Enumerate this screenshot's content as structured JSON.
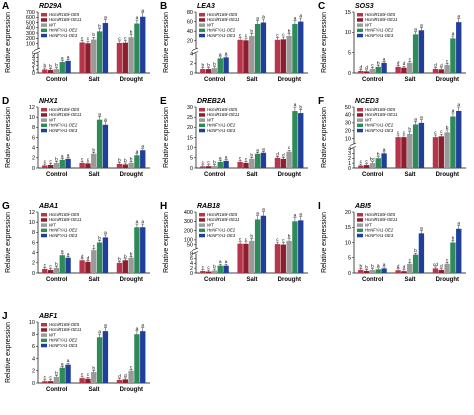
{
  "colors": {
    "HcmiR169i-OE5": "#b5364a",
    "HcmiR169i-OE11": "#8c1f2e",
    "WT": "#9a9a9a",
    "HcNFYA1-OE2": "#2e8b57",
    "HcNFYA1-OE3": "#1f3f9a"
  },
  "chart_data": [
    {
      "type": "bar",
      "letter": "A",
      "title": "RD29A",
      "ylabel": "Relative expression",
      "categories": [
        "Control",
        "Salt",
        "Drought"
      ],
      "broken_axis": true,
      "ylim": [
        0,
        700
      ],
      "yticks": [
        0,
        1,
        2,
        3,
        4,
        5,
        100,
        200,
        300,
        400,
        500,
        600,
        700
      ],
      "series": [
        {
          "name": "HcmiR169i-OE5",
          "values": [
            0.9,
            120,
            110
          ],
          "letters": [
            "b",
            "c",
            "c"
          ]
        },
        {
          "name": "HcmiR169i-OE11",
          "values": [
            0.8,
            105,
            115
          ],
          "letters": [
            "b",
            "c",
            "c"
          ]
        },
        {
          "name": "WT",
          "values": [
            1.0,
            175,
            220
          ],
          "letters": [
            "b",
            "b",
            "b"
          ]
        },
        {
          "name": "HcNFYA1-OE2",
          "values": [
            2.8,
            330,
            480
          ],
          "letters": [
            "a",
            "b",
            "a"
          ]
        },
        {
          "name": "HcNFYA1-OE3",
          "values": [
            3.1,
            490,
            610
          ],
          "letters": [
            "a",
            "a",
            "a"
          ]
        }
      ]
    },
    {
      "type": "bar",
      "letter": "B",
      "title": "LEA3",
      "ylabel": "Relative expression",
      "categories": [
        "Control",
        "Salt",
        "Drought"
      ],
      "broken_axis": true,
      "ylim": [
        0,
        80
      ],
      "yticks": [
        0,
        2,
        4,
        20,
        40,
        60,
        80
      ],
      "series": [
        {
          "name": "HcmiR169i-OE5",
          "values": [
            0.8,
            22,
            22
          ],
          "letters": [
            "b",
            "c",
            "c"
          ]
        },
        {
          "name": "HcmiR169i-OE11",
          "values": [
            0.8,
            21,
            23
          ],
          "letters": [
            "b",
            "c",
            "c"
          ]
        },
        {
          "name": "WT",
          "values": [
            1.0,
            30,
            30
          ],
          "letters": [
            "b",
            "b",
            "b"
          ]
        },
        {
          "name": "HcNFYA1-OE2",
          "values": [
            3.0,
            55,
            55
          ],
          "letters": [
            "a",
            "a",
            "a"
          ]
        },
        {
          "name": "HcNFYA1-OE3",
          "values": [
            3.2,
            58,
            60
          ],
          "letters": [
            "a",
            "a",
            "a"
          ]
        }
      ]
    },
    {
      "type": "bar",
      "letter": "C",
      "title": "SOS3",
      "ylabel": "Relative expression",
      "categories": [
        "Control",
        "Salt",
        "Drought"
      ],
      "broken_axis": false,
      "ylim": [
        0,
        15
      ],
      "yticks": [
        0,
        5,
        10,
        15
      ],
      "series": [
        {
          "name": "HcmiR169i-OE5",
          "values": [
            0.5,
            1.5,
            1.0
          ],
          "letters": [
            "d",
            "d",
            "d"
          ]
        },
        {
          "name": "HcmiR169i-OE11",
          "values": [
            0.4,
            1.3,
            0.9
          ],
          "letters": [
            "d",
            "d",
            "d"
          ]
        },
        {
          "name": "WT",
          "values": [
            1.0,
            2.5,
            2.0
          ],
          "letters": [
            "c",
            "c",
            "c"
          ]
        },
        {
          "name": "HcNFYA1-OE2",
          "values": [
            1.5,
            9.5,
            8.5
          ],
          "letters": [
            "b",
            "a",
            "a"
          ]
        },
        {
          "name": "HcNFYA1-OE3",
          "values": [
            2.5,
            10.5,
            12.5
          ],
          "letters": [
            "a",
            "a",
            "a"
          ]
        }
      ]
    },
    {
      "type": "bar",
      "letter": "D",
      "title": "NHX1",
      "ylabel": "Relative expression",
      "categories": [
        "Control",
        "Salt",
        "Drought"
      ],
      "broken_axis": false,
      "ylim": [
        0,
        12
      ],
      "yticks": [
        0,
        2,
        4,
        6,
        8,
        10,
        12
      ],
      "series": [
        {
          "name": "HcmiR169i-OE5",
          "values": [
            0.5,
            1.0,
            0.8
          ],
          "letters": [
            "c",
            "c",
            "b"
          ]
        },
        {
          "name": "HcmiR169i-OE11",
          "values": [
            0.6,
            0.9,
            0.7
          ],
          "letters": [
            "c",
            "c",
            "b"
          ]
        },
        {
          "name": "WT",
          "values": [
            1.0,
            2.8,
            1.0
          ],
          "letters": [
            "b",
            "b",
            "b"
          ]
        },
        {
          "name": "HcNFYA1-OE2",
          "values": [
            1.6,
            9.5,
            2.5
          ],
          "letters": [
            "a",
            "a",
            "a"
          ]
        },
        {
          "name": "HcNFYA1-OE3",
          "values": [
            1.8,
            8.5,
            3.5
          ],
          "letters": [
            "a",
            "a",
            "a"
          ]
        }
      ]
    },
    {
      "type": "bar",
      "letter": "E",
      "title": "DREB2A",
      "ylabel": "Relative expression",
      "categories": [
        "Control",
        "Salt",
        "Drought"
      ],
      "broken_axis": false,
      "ylim": [
        0,
        30
      ],
      "yticks": [
        0,
        5,
        10,
        15,
        20,
        25,
        30
      ],
      "series": [
        {
          "name": "HcmiR169i-OE5",
          "values": [
            0.8,
            3.0,
            5.0
          ],
          "letters": [
            "c",
            "c",
            "d"
          ]
        },
        {
          "name": "HcmiR169i-OE11",
          "values": [
            0.9,
            2.5,
            4.5
          ],
          "letters": [
            "c",
            "c",
            "d"
          ]
        },
        {
          "name": "WT",
          "values": [
            1.0,
            4.5,
            8.0
          ],
          "letters": [
            "b",
            "b",
            "c"
          ]
        },
        {
          "name": "HcNFYA1-OE2",
          "values": [
            3.0,
            7.0,
            28.0
          ],
          "letters": [
            "a",
            "a",
            "a"
          ]
        },
        {
          "name": "HcNFYA1-OE3",
          "values": [
            3.5,
            7.5,
            27.0
          ],
          "letters": [
            "a",
            "a",
            "b"
          ]
        }
      ]
    },
    {
      "type": "bar",
      "letter": "F",
      "title": "NCED3",
      "ylabel": "Relative expression",
      "categories": [
        "Control",
        "Salt",
        "Drought"
      ],
      "broken_axis": true,
      "ylim": [
        0,
        50
      ],
      "yticks": [
        0,
        1,
        2,
        3,
        4,
        10,
        20,
        30,
        40,
        50
      ],
      "series": [
        {
          "name": "HcmiR169i-OE5",
          "values": [
            0.5,
            12,
            12
          ],
          "letters": [
            "c",
            "c",
            "c"
          ]
        },
        {
          "name": "HcmiR169i-OE11",
          "values": [
            0.6,
            12,
            13
          ],
          "letters": [
            "c",
            "c",
            "c"
          ]
        },
        {
          "name": "WT",
          "values": [
            1.0,
            16,
            18
          ],
          "letters": [
            "bc",
            "b",
            "b"
          ]
        },
        {
          "name": "HcNFYA1-OE2",
          "values": [
            2.0,
            28,
            38
          ],
          "letters": [
            "b",
            "a",
            "a"
          ]
        },
        {
          "name": "HcNFYA1-OE3",
          "values": [
            3.0,
            30,
            45
          ],
          "letters": [
            "a",
            "a",
            "a"
          ]
        }
      ]
    },
    {
      "type": "bar",
      "letter": "G",
      "title": "ABA1",
      "ylabel": "Relative expression",
      "categories": [
        "Control",
        "Salt",
        "Drought"
      ],
      "broken_axis": false,
      "ylim": [
        0,
        12
      ],
      "yticks": [
        0,
        2,
        4,
        6,
        8,
        10,
        12
      ],
      "series": [
        {
          "name": "HcmiR169i-OE5",
          "values": [
            0.8,
            2.5,
            2.0
          ],
          "letters": [
            "c",
            "d",
            "b"
          ]
        },
        {
          "name": "HcmiR169i-OE11",
          "values": [
            0.6,
            2.2,
            2.5
          ],
          "letters": [
            "c",
            "d",
            "b"
          ]
        },
        {
          "name": "WT",
          "values": [
            1.0,
            4.5,
            3.0
          ],
          "letters": [
            "b",
            "c",
            "b"
          ]
        },
        {
          "name": "HcNFYA1-OE2",
          "values": [
            3.5,
            6.0,
            9.0
          ],
          "letters": [
            "a",
            "b",
            "a"
          ]
        },
        {
          "name": "HcNFYA1-OE3",
          "values": [
            3.0,
            7.0,
            9.0
          ],
          "letters": [
            "a",
            "a",
            "a"
          ]
        }
      ]
    },
    {
      "type": "bar",
      "letter": "H",
      "title": "RAB18",
      "ylabel": "Relative expression",
      "categories": [
        "Control",
        "Salt",
        "Drought"
      ],
      "broken_axis": true,
      "ylim": [
        0,
        400
      ],
      "yticks": [
        0,
        2,
        4,
        6,
        8,
        50,
        100,
        200,
        300,
        400
      ],
      "series": [
        {
          "name": "HcmiR169i-OE5",
          "values": [
            0.8,
            60,
            55
          ],
          "letters": [
            "c",
            "c",
            "c"
          ]
        },
        {
          "name": "HcmiR169i-OE11",
          "values": [
            0.6,
            58,
            50
          ],
          "letters": [
            "c",
            "c",
            "c"
          ]
        },
        {
          "name": "WT",
          "values": [
            1.0,
            90,
            90
          ],
          "letters": [
            "b",
            "b",
            "b"
          ]
        },
        {
          "name": "HcNFYA1-OE2",
          "values": [
            3.0,
            320,
            300
          ],
          "letters": [
            "a",
            "a",
            "a"
          ]
        },
        {
          "name": "HcNFYA1-OE3",
          "values": [
            3.0,
            360,
            310
          ],
          "letters": [
            "a",
            "a",
            "a"
          ]
        }
      ]
    },
    {
      "type": "bar",
      "letter": "I",
      "title": "ABI5",
      "ylabel": "Relative expression",
      "categories": [
        "Control",
        "Salt",
        "Drought"
      ],
      "broken_axis": false,
      "ylim": [
        0,
        20
      ],
      "yticks": [
        0,
        5,
        10,
        15,
        20
      ],
      "series": [
        {
          "name": "HcmiR169i-OE5",
          "values": [
            1.0,
            0.9,
            1.5
          ],
          "letters": [
            "b",
            "d",
            "cd"
          ]
        },
        {
          "name": "HcmiR169i-OE11",
          "values": [
            0.7,
            0.6,
            1.0
          ],
          "letters": [
            "b",
            "d",
            "d"
          ]
        },
        {
          "name": "WT",
          "values": [
            1.0,
            3.0,
            3.0
          ],
          "letters": [
            "b",
            "c",
            "c"
          ]
        },
        {
          "name": "HcNFYA1-OE2",
          "values": [
            1.2,
            6.0,
            10.0
          ],
          "letters": [
            "a",
            "b",
            "b"
          ]
        },
        {
          "name": "HcNFYA1-OE3",
          "values": [
            1.5,
            13.0,
            14.5
          ],
          "letters": [
            "a",
            "a",
            "a"
          ]
        }
      ]
    },
    {
      "type": "bar",
      "letter": "J",
      "title": "ABF1",
      "ylabel": "Relative expression",
      "categories": [
        "Control",
        "Salt",
        "Drought"
      ],
      "broken_axis": false,
      "ylim": [
        0,
        10
      ],
      "yticks": [
        0,
        2,
        4,
        6,
        8,
        10
      ],
      "series": [
        {
          "name": "HcmiR169i-OE5",
          "values": [
            0.3,
            0.8,
            0.5
          ],
          "letters": [
            "c",
            "c",
            "d"
          ]
        },
        {
          "name": "HcmiR169i-OE11",
          "values": [
            0.3,
            0.7,
            0.6
          ],
          "letters": [
            "c",
            "c",
            "d"
          ]
        },
        {
          "name": "WT",
          "values": [
            1.0,
            1.8,
            2.0
          ],
          "letters": [
            "b",
            "b",
            "c"
          ]
        },
        {
          "name": "HcNFYA1-OE2",
          "values": [
            2.5,
            7.5,
            8.0
          ],
          "letters": [
            "a",
            "a",
            "a"
          ]
        },
        {
          "name": "HcNFYA1-OE3",
          "values": [
            3.0,
            8.5,
            8.5
          ],
          "letters": [
            "a",
            "a",
            "a"
          ]
        }
      ]
    }
  ]
}
